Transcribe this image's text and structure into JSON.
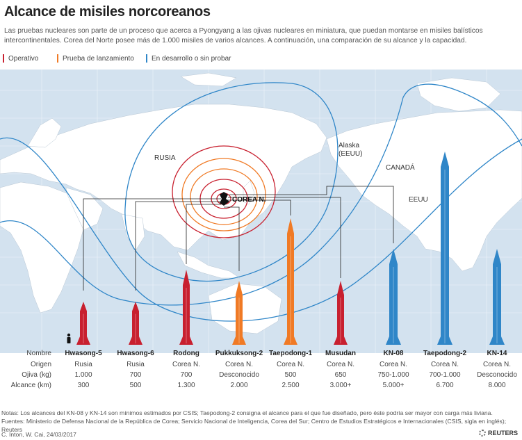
{
  "title": "Alcance de misiles norcoreanos",
  "subtitle": "Las pruebas nucleares son parte de un proceso que acerca a Pyongyang a las ojivas nucleares en miniatura, que puedan montarse en misiles balísticos intercontinentales. Corea del Norte posee más de 1.000 misiles de varios alcances. A continuación, una comparación de su alcance y la capacidad.",
  "legend": [
    {
      "label": "Operativo",
      "color": "#c8202f"
    },
    {
      "label": "Prueba de lanzamiento",
      "color": "#f07a25"
    },
    {
      "label": "En desarrollo o sin probar",
      "color": "#2f86c8"
    }
  ],
  "colors": {
    "operativo": "#c8202f",
    "prueba": "#f07a25",
    "desarrollo": "#2f86c8",
    "ocean": "#d3e2ef",
    "land": "#ffffff"
  },
  "map_labels": {
    "rusia": "RUSIA",
    "corea": "COREA N.",
    "alaska": "Alaska\n(EEUU)",
    "canada": "CANADÁ",
    "eeuu": "EEUU"
  },
  "row_labels": {
    "nombre": "Nombre",
    "origen": "Origen",
    "ojiva": "Ojiva (kg)",
    "alcance": "Alcance (km)"
  },
  "missiles": [
    {
      "name": "Hwasong-5",
      "origin": "Rusia",
      "warhead": "1.000",
      "range": "300",
      "status": "operativo"
    },
    {
      "name": "Hwasong-6",
      "origin": "Rusia",
      "warhead": "700",
      "range": "500",
      "status": "operativo"
    },
    {
      "name": "Rodong",
      "origin": "Corea N.",
      "warhead": "700",
      "range": "1.300",
      "status": "operativo"
    },
    {
      "name": "Pukkuksong-2",
      "origin": "Corea N.",
      "warhead": "Desconocido",
      "range": "2.000",
      "status": "prueba"
    },
    {
      "name": "Taepodong-1",
      "origin": "Corea N.",
      "warhead": "500",
      "range": "2.500",
      "status": "prueba"
    },
    {
      "name": "Musudan",
      "origin": "Corea N.",
      "warhead": "650",
      "range": "3.000+",
      "status": "operativo"
    },
    {
      "name": "KN-08",
      "origin": "Corea N.",
      "warhead": "750-1.000",
      "range": "5.000+",
      "status": "desarrollo"
    },
    {
      "name": "Taepodong-2",
      "origin": "Corea N.",
      "warhead": "700-1.000",
      "range": "6.700",
      "status": "desarrollo"
    },
    {
      "name": "KN-14",
      "origin": "Corea N.",
      "warhead": "Desconocido",
      "range": "8.000",
      "status": "desarrollo"
    }
  ],
  "notes": "Notas: Los alcances del KN-08 y KN-14 son mínimos estimados por CSIS; Taepodong-2 consigna el alcance para el que fue diseñado, pero éste podría ser mayor con carga más liviana.",
  "sources": "Fuentes: Ministerio de Defensa Nacional de la República de Corea; Servicio Nacional de Inteligencia, Corea del Sur; Centro de Estudios Estratégicos e Internacionales (CSIS, sigla en inglés); Reuters",
  "credit": "C. Inton,  W. Cai, 24/03/2017",
  "logo": "REUTERS"
}
